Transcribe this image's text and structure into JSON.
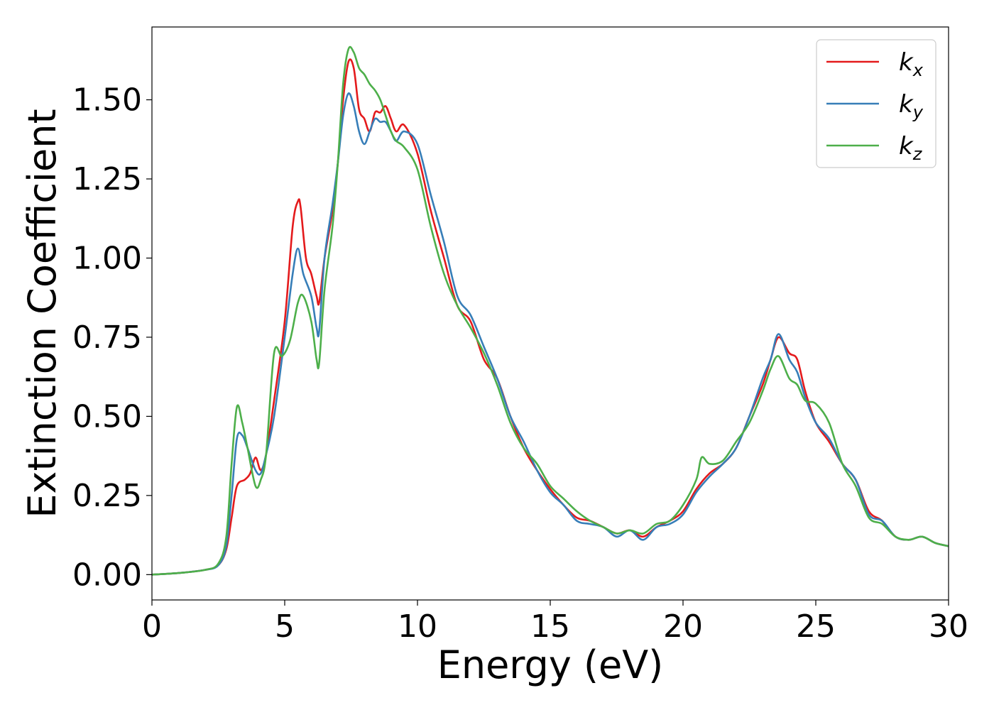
{
  "chart_data": {
    "type": "line",
    "xlabel": "Energy (eV)",
    "ylabel": "Extinction Coefficient",
    "xlim": [
      0,
      30
    ],
    "ylim": [
      -0.08,
      1.73
    ],
    "xticks": [
      0,
      5,
      10,
      15,
      20,
      25,
      30
    ],
    "xtick_labels": [
      "0",
      "5",
      "10",
      "15",
      "20",
      "25",
      "30"
    ],
    "yticks": [
      0.0,
      0.25,
      0.5,
      0.75,
      1.0,
      1.25,
      1.5
    ],
    "ytick_labels": [
      "0.00",
      "0.25",
      "0.50",
      "0.75",
      "1.00",
      "1.25",
      "1.50"
    ],
    "grid": false,
    "legend_position": "top-right",
    "series": [
      {
        "name": "kx",
        "legend_base": "k",
        "legend_sub": "x",
        "color": "#e41a1c",
        "points": [
          [
            0,
            0.0
          ],
          [
            1,
            0.005
          ],
          [
            2,
            0.015
          ],
          [
            2.5,
            0.03
          ],
          [
            2.8,
            0.08
          ],
          [
            3.0,
            0.18
          ],
          [
            3.2,
            0.28
          ],
          [
            3.5,
            0.3
          ],
          [
            3.7,
            0.32
          ],
          [
            3.9,
            0.37
          ],
          [
            4.1,
            0.33
          ],
          [
            4.3,
            0.38
          ],
          [
            4.6,
            0.55
          ],
          [
            5.0,
            0.8
          ],
          [
            5.3,
            1.1
          ],
          [
            5.5,
            1.18
          ],
          [
            5.6,
            1.16
          ],
          [
            5.8,
            1.0
          ],
          [
            6.0,
            0.95
          ],
          [
            6.2,
            0.88
          ],
          [
            6.3,
            0.86
          ],
          [
            6.5,
            1.0
          ],
          [
            6.8,
            1.15
          ],
          [
            7.0,
            1.3
          ],
          [
            7.2,
            1.5
          ],
          [
            7.4,
            1.62
          ],
          [
            7.6,
            1.6
          ],
          [
            7.8,
            1.47
          ],
          [
            8.0,
            1.44
          ],
          [
            8.2,
            1.4
          ],
          [
            8.4,
            1.46
          ],
          [
            8.6,
            1.46
          ],
          [
            8.8,
            1.48
          ],
          [
            9.0,
            1.44
          ],
          [
            9.2,
            1.4
          ],
          [
            9.5,
            1.42
          ],
          [
            10.0,
            1.33
          ],
          [
            10.5,
            1.15
          ],
          [
            11.0,
            1.0
          ],
          [
            11.5,
            0.85
          ],
          [
            12.0,
            0.8
          ],
          [
            12.5,
            0.68
          ],
          [
            13.0,
            0.62
          ],
          [
            13.5,
            0.5
          ],
          [
            14.0,
            0.4
          ],
          [
            14.5,
            0.33
          ],
          [
            15.0,
            0.27
          ],
          [
            15.5,
            0.22
          ],
          [
            16.0,
            0.18
          ],
          [
            16.5,
            0.17
          ],
          [
            17.0,
            0.15
          ],
          [
            17.5,
            0.13
          ],
          [
            18.0,
            0.14
          ],
          [
            18.5,
            0.12
          ],
          [
            19.0,
            0.15
          ],
          [
            19.5,
            0.17
          ],
          [
            20.0,
            0.2
          ],
          [
            20.5,
            0.27
          ],
          [
            21.0,
            0.32
          ],
          [
            21.5,
            0.35
          ],
          [
            22.0,
            0.4
          ],
          [
            22.5,
            0.5
          ],
          [
            23.0,
            0.6
          ],
          [
            23.3,
            0.68
          ],
          [
            23.6,
            0.75
          ],
          [
            24.0,
            0.7
          ],
          [
            24.3,
            0.68
          ],
          [
            24.6,
            0.58
          ],
          [
            25.0,
            0.48
          ],
          [
            25.5,
            0.42
          ],
          [
            26.0,
            0.35
          ],
          [
            26.5,
            0.3
          ],
          [
            27.0,
            0.2
          ],
          [
            27.5,
            0.17
          ],
          [
            28.0,
            0.12
          ],
          [
            28.5,
            0.11
          ],
          [
            29.0,
            0.12
          ],
          [
            29.5,
            0.1
          ],
          [
            30.0,
            0.09
          ]
        ]
      },
      {
        "name": "ky",
        "legend_base": "k",
        "legend_sub": "y",
        "color": "#377eb8",
        "points": [
          [
            0,
            0.0
          ],
          [
            1,
            0.005
          ],
          [
            2,
            0.015
          ],
          [
            2.5,
            0.03
          ],
          [
            2.8,
            0.09
          ],
          [
            3.0,
            0.25
          ],
          [
            3.2,
            0.43
          ],
          [
            3.4,
            0.44
          ],
          [
            3.6,
            0.4
          ],
          [
            3.9,
            0.33
          ],
          [
            4.1,
            0.32
          ],
          [
            4.3,
            0.38
          ],
          [
            4.6,
            0.5
          ],
          [
            5.0,
            0.75
          ],
          [
            5.3,
            0.95
          ],
          [
            5.5,
            1.03
          ],
          [
            5.7,
            0.95
          ],
          [
            6.0,
            0.88
          ],
          [
            6.2,
            0.78
          ],
          [
            6.3,
            0.77
          ],
          [
            6.5,
            1.0
          ],
          [
            6.8,
            1.17
          ],
          [
            7.0,
            1.3
          ],
          [
            7.2,
            1.45
          ],
          [
            7.4,
            1.52
          ],
          [
            7.6,
            1.48
          ],
          [
            7.8,
            1.4
          ],
          [
            8.0,
            1.36
          ],
          [
            8.2,
            1.4
          ],
          [
            8.4,
            1.44
          ],
          [
            8.6,
            1.43
          ],
          [
            8.8,
            1.43
          ],
          [
            9.0,
            1.4
          ],
          [
            9.2,
            1.37
          ],
          [
            9.5,
            1.4
          ],
          [
            10.0,
            1.36
          ],
          [
            10.5,
            1.2
          ],
          [
            11.0,
            1.05
          ],
          [
            11.5,
            0.88
          ],
          [
            12.0,
            0.82
          ],
          [
            12.5,
            0.72
          ],
          [
            13.0,
            0.62
          ],
          [
            13.5,
            0.5
          ],
          [
            14.0,
            0.42
          ],
          [
            14.5,
            0.33
          ],
          [
            15.0,
            0.26
          ],
          [
            15.5,
            0.22
          ],
          [
            16.0,
            0.17
          ],
          [
            16.5,
            0.16
          ],
          [
            17.0,
            0.15
          ],
          [
            17.5,
            0.12
          ],
          [
            18.0,
            0.14
          ],
          [
            18.5,
            0.11
          ],
          [
            19.0,
            0.15
          ],
          [
            19.5,
            0.16
          ],
          [
            20.0,
            0.19
          ],
          [
            20.5,
            0.26
          ],
          [
            21.0,
            0.31
          ],
          [
            21.5,
            0.35
          ],
          [
            22.0,
            0.4
          ],
          [
            22.5,
            0.5
          ],
          [
            23.0,
            0.62
          ],
          [
            23.3,
            0.68
          ],
          [
            23.6,
            0.76
          ],
          [
            24.0,
            0.68
          ],
          [
            24.3,
            0.64
          ],
          [
            24.6,
            0.56
          ],
          [
            25.0,
            0.48
          ],
          [
            25.5,
            0.43
          ],
          [
            26.0,
            0.35
          ],
          [
            26.5,
            0.3
          ],
          [
            27.0,
            0.19
          ],
          [
            27.5,
            0.17
          ],
          [
            28.0,
            0.12
          ],
          [
            28.5,
            0.11
          ],
          [
            29.0,
            0.12
          ],
          [
            29.5,
            0.1
          ],
          [
            30.0,
            0.09
          ]
        ]
      },
      {
        "name": "kz",
        "legend_base": "k",
        "legend_sub": "z",
        "color": "#4daf4a",
        "points": [
          [
            0,
            0.0
          ],
          [
            1,
            0.005
          ],
          [
            2,
            0.015
          ],
          [
            2.5,
            0.035
          ],
          [
            2.8,
            0.12
          ],
          [
            3.0,
            0.35
          ],
          [
            3.2,
            0.53
          ],
          [
            3.4,
            0.48
          ],
          [
            3.6,
            0.4
          ],
          [
            3.9,
            0.28
          ],
          [
            4.1,
            0.3
          ],
          [
            4.3,
            0.38
          ],
          [
            4.6,
            0.7
          ],
          [
            4.9,
            0.69
          ],
          [
            5.2,
            0.74
          ],
          [
            5.5,
            0.86
          ],
          [
            5.7,
            0.88
          ],
          [
            6.0,
            0.8
          ],
          [
            6.2,
            0.68
          ],
          [
            6.3,
            0.67
          ],
          [
            6.5,
            0.9
          ],
          [
            6.8,
            1.1
          ],
          [
            7.0,
            1.3
          ],
          [
            7.2,
            1.55
          ],
          [
            7.4,
            1.66
          ],
          [
            7.6,
            1.65
          ],
          [
            7.8,
            1.6
          ],
          [
            8.0,
            1.58
          ],
          [
            8.2,
            1.55
          ],
          [
            8.4,
            1.53
          ],
          [
            8.6,
            1.5
          ],
          [
            8.8,
            1.45
          ],
          [
            9.0,
            1.4
          ],
          [
            9.2,
            1.37
          ],
          [
            9.5,
            1.35
          ],
          [
            10.0,
            1.28
          ],
          [
            10.5,
            1.1
          ],
          [
            11.0,
            0.95
          ],
          [
            11.5,
            0.85
          ],
          [
            12.0,
            0.78
          ],
          [
            12.5,
            0.7
          ],
          [
            13.0,
            0.6
          ],
          [
            13.5,
            0.48
          ],
          [
            14.0,
            0.4
          ],
          [
            14.5,
            0.35
          ],
          [
            15.0,
            0.28
          ],
          [
            15.5,
            0.24
          ],
          [
            16.0,
            0.2
          ],
          [
            16.5,
            0.17
          ],
          [
            17.0,
            0.15
          ],
          [
            17.5,
            0.13
          ],
          [
            18.0,
            0.14
          ],
          [
            18.5,
            0.13
          ],
          [
            19.0,
            0.16
          ],
          [
            19.5,
            0.17
          ],
          [
            20.0,
            0.22
          ],
          [
            20.5,
            0.3
          ],
          [
            20.7,
            0.37
          ],
          [
            21.0,
            0.35
          ],
          [
            21.5,
            0.36
          ],
          [
            22.0,
            0.42
          ],
          [
            22.5,
            0.48
          ],
          [
            23.0,
            0.58
          ],
          [
            23.3,
            0.65
          ],
          [
            23.6,
            0.69
          ],
          [
            24.0,
            0.62
          ],
          [
            24.3,
            0.6
          ],
          [
            24.6,
            0.55
          ],
          [
            25.0,
            0.54
          ],
          [
            25.5,
            0.48
          ],
          [
            26.0,
            0.35
          ],
          [
            26.5,
            0.28
          ],
          [
            27.0,
            0.18
          ],
          [
            27.5,
            0.16
          ],
          [
            28.0,
            0.12
          ],
          [
            28.5,
            0.11
          ],
          [
            29.0,
            0.12
          ],
          [
            29.5,
            0.1
          ],
          [
            30.0,
            0.09
          ]
        ]
      }
    ]
  }
}
